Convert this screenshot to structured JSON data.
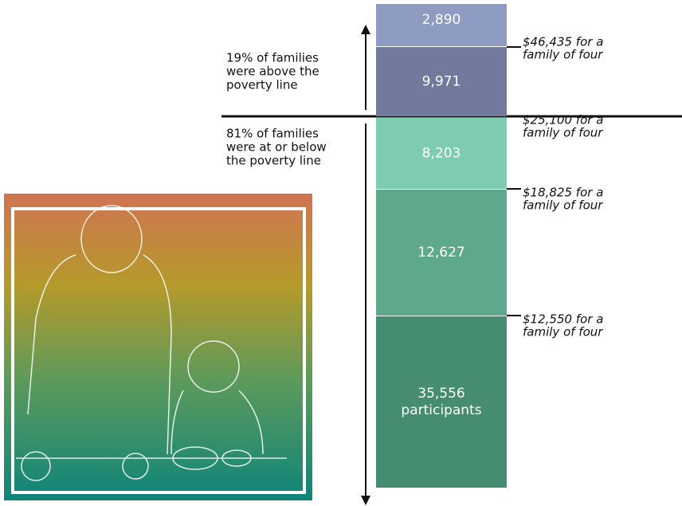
{
  "segments": [
    {
      "label": [
        "2,890"
      ]
    },
    {
      "label": [
        "9,971"
      ]
    },
    {
      "label": [
        "8,203"
      ]
    },
    {
      "label": [
        "12,627"
      ]
    },
    {
      "label": [
        "35,556",
        "participants"
      ]
    }
  ],
  "thresholds": [
    [
      "$46,435 for a",
      "family of four"
    ],
    [
      "$25,100 for a",
      "family of four"
    ],
    [
      "$18,825 for a",
      "family of four"
    ],
    [
      "$12,550 for a",
      "family of four"
    ]
  ],
  "notes": [
    [
      "19% of families",
      "were above the",
      "poverty line"
    ],
    [
      "81% of families",
      "were at or below",
      "the poverty line"
    ]
  ]
}
